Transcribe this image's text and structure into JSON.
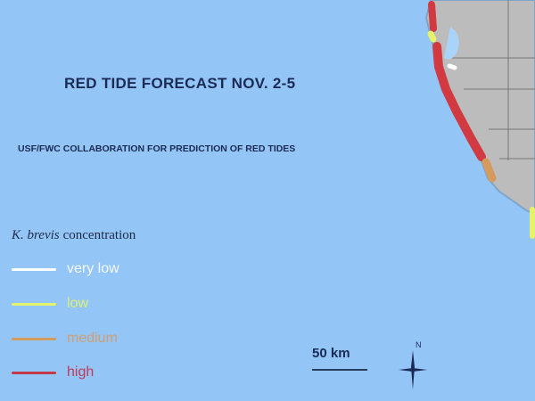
{
  "title": "RED TIDE FORECAST NOV. 2-5",
  "subtitle": "USF/FWC COLLABORATION FOR PREDICTION OF RED TIDES",
  "legend": {
    "title_italic": "K. brevis",
    "title_rest": "concentration",
    "items": [
      {
        "label": "very low",
        "color": "#ffffff"
      },
      {
        "label": "low",
        "color": "#e4f36a"
      },
      {
        "label": "medium",
        "color": "#d49a5e"
      },
      {
        "label": "high",
        "color": "#d03a40"
      }
    ]
  },
  "scale_label": "50 km",
  "north_label": "N",
  "colors": {
    "water": "#93c6f6",
    "land": "#bcbcbc",
    "text": "#1b2b55"
  }
}
